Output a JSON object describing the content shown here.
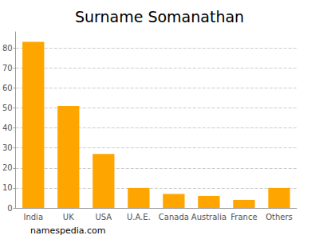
{
  "chart_data": {
    "type": "bar",
    "title": "Surname Somanathan",
    "categories": [
      "India",
      "UK",
      "USA",
      "U.A.E.",
      "Canada",
      "Australia",
      "France",
      "Others"
    ],
    "values": [
      83,
      51,
      27,
      10,
      7,
      6,
      4,
      10
    ],
    "color": "#ffa500",
    "ylim": [
      0,
      88
    ],
    "yticks": [
      0,
      10,
      20,
      30,
      40,
      50,
      60,
      70,
      80
    ],
    "grid": true,
    "annotation": "namespedia.com"
  }
}
